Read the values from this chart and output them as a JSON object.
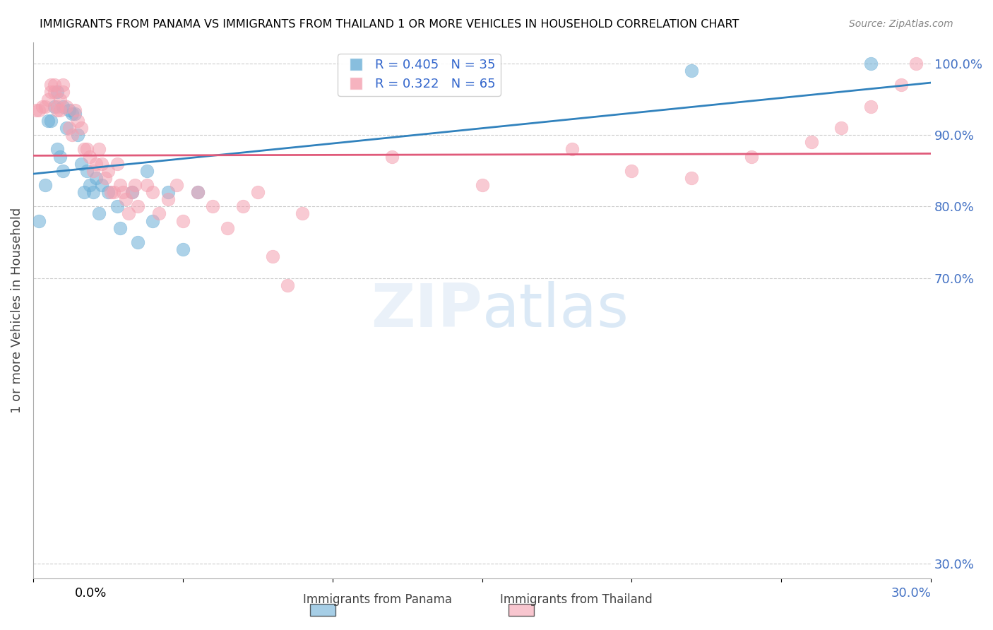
{
  "title": "IMMIGRANTS FROM PANAMA VS IMMIGRANTS FROM THAILAND 1 OR MORE VEHICLES IN HOUSEHOLD CORRELATION CHART",
  "source": "Source: ZipAtlas.com",
  "ylabel": "1 or more Vehicles in Household",
  "ylabel_ticks": [
    "100.0%",
    "90.0%",
    "80.0%",
    "70.0%",
    "30.0%"
  ],
  "ylabel_tick_vals": [
    1.0,
    0.9,
    0.8,
    0.7,
    0.3
  ],
  "xlim": [
    0.0,
    0.3
  ],
  "ylim": [
    0.28,
    1.03
  ],
  "panama_R": 0.405,
  "panama_N": 35,
  "thailand_R": 0.322,
  "thailand_N": 65,
  "panama_color": "#6baed6",
  "thailand_color": "#f4a0b0",
  "panama_line_color": "#3182bd",
  "thailand_line_color": "#e05a7a",
  "panama_x": [
    0.002,
    0.004,
    0.005,
    0.006,
    0.007,
    0.008,
    0.008,
    0.009,
    0.01,
    0.01,
    0.011,
    0.012,
    0.013,
    0.014,
    0.015,
    0.016,
    0.017,
    0.018,
    0.019,
    0.02,
    0.021,
    0.022,
    0.023,
    0.025,
    0.028,
    0.029,
    0.033,
    0.035,
    0.038,
    0.04,
    0.045,
    0.05,
    0.055,
    0.22,
    0.28
  ],
  "panama_y": [
    0.78,
    0.83,
    0.92,
    0.92,
    0.94,
    0.88,
    0.96,
    0.87,
    0.85,
    0.94,
    0.91,
    0.935,
    0.93,
    0.93,
    0.9,
    0.86,
    0.82,
    0.85,
    0.83,
    0.82,
    0.84,
    0.79,
    0.83,
    0.82,
    0.8,
    0.77,
    0.82,
    0.75,
    0.85,
    0.78,
    0.82,
    0.74,
    0.82,
    0.99,
    1.0
  ],
  "thailand_x": [
    0.001,
    0.002,
    0.003,
    0.004,
    0.005,
    0.006,
    0.006,
    0.007,
    0.007,
    0.008,
    0.008,
    0.009,
    0.009,
    0.01,
    0.01,
    0.011,
    0.012,
    0.013,
    0.014,
    0.015,
    0.016,
    0.017,
    0.018,
    0.019,
    0.02,
    0.021,
    0.022,
    0.023,
    0.024,
    0.025,
    0.026,
    0.027,
    0.028,
    0.029,
    0.03,
    0.031,
    0.032,
    0.033,
    0.034,
    0.035,
    0.038,
    0.04,
    0.042,
    0.045,
    0.048,
    0.05,
    0.055,
    0.06,
    0.065,
    0.07,
    0.075,
    0.08,
    0.085,
    0.09,
    0.12,
    0.15,
    0.18,
    0.2,
    0.22,
    0.24,
    0.26,
    0.27,
    0.28,
    0.29,
    0.295
  ],
  "thailand_y": [
    0.935,
    0.935,
    0.94,
    0.94,
    0.95,
    0.96,
    0.97,
    0.96,
    0.97,
    0.94,
    0.935,
    0.935,
    0.95,
    0.96,
    0.97,
    0.94,
    0.91,
    0.9,
    0.935,
    0.92,
    0.91,
    0.88,
    0.88,
    0.87,
    0.85,
    0.86,
    0.88,
    0.86,
    0.84,
    0.85,
    0.82,
    0.82,
    0.86,
    0.83,
    0.82,
    0.81,
    0.79,
    0.82,
    0.83,
    0.8,
    0.83,
    0.82,
    0.79,
    0.81,
    0.83,
    0.78,
    0.82,
    0.8,
    0.77,
    0.8,
    0.82,
    0.73,
    0.69,
    0.79,
    0.87,
    0.83,
    0.88,
    0.85,
    0.84,
    0.87,
    0.89,
    0.91,
    0.94,
    0.97,
    1.0
  ]
}
